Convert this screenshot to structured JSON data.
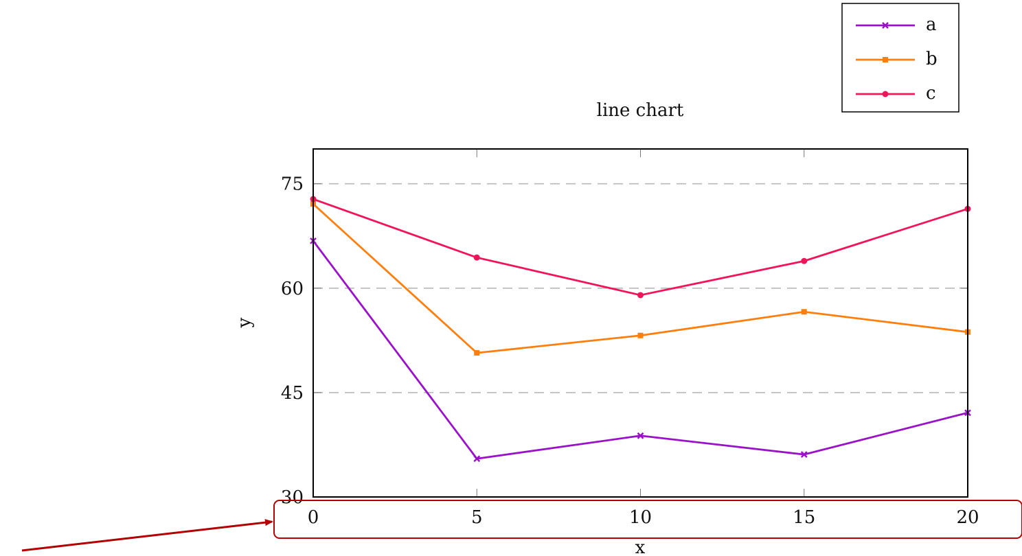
{
  "chart_data": {
    "type": "line",
    "title": "line chart",
    "xlabel": "x",
    "ylabel": "y",
    "x": [
      0,
      5,
      10,
      15,
      20
    ],
    "xlim": [
      0,
      20
    ],
    "ylim": [
      30,
      80
    ],
    "xticks": [
      0,
      5,
      10,
      15,
      20
    ],
    "yticks": [
      30,
      45,
      60,
      75
    ],
    "grid": "horizontal dashed",
    "legend_position": "top-right",
    "series": [
      {
        "name": "a",
        "color": "#9a12c8",
        "marker": "x",
        "values": [
          66.8,
          35.5,
          38.8,
          36.1,
          42.1
        ]
      },
      {
        "name": "b",
        "color": "#ff7f0e",
        "marker": "square",
        "values": [
          72.1,
          50.7,
          53.2,
          56.6,
          53.7
        ]
      },
      {
        "name": "c",
        "color": "#f0145a",
        "marker": "circle",
        "values": [
          72.8,
          64.4,
          59.0,
          63.9,
          71.4
        ]
      }
    ]
  },
  "annotation": {
    "color": "#b30000",
    "highlight": "x-axis tick labels"
  }
}
